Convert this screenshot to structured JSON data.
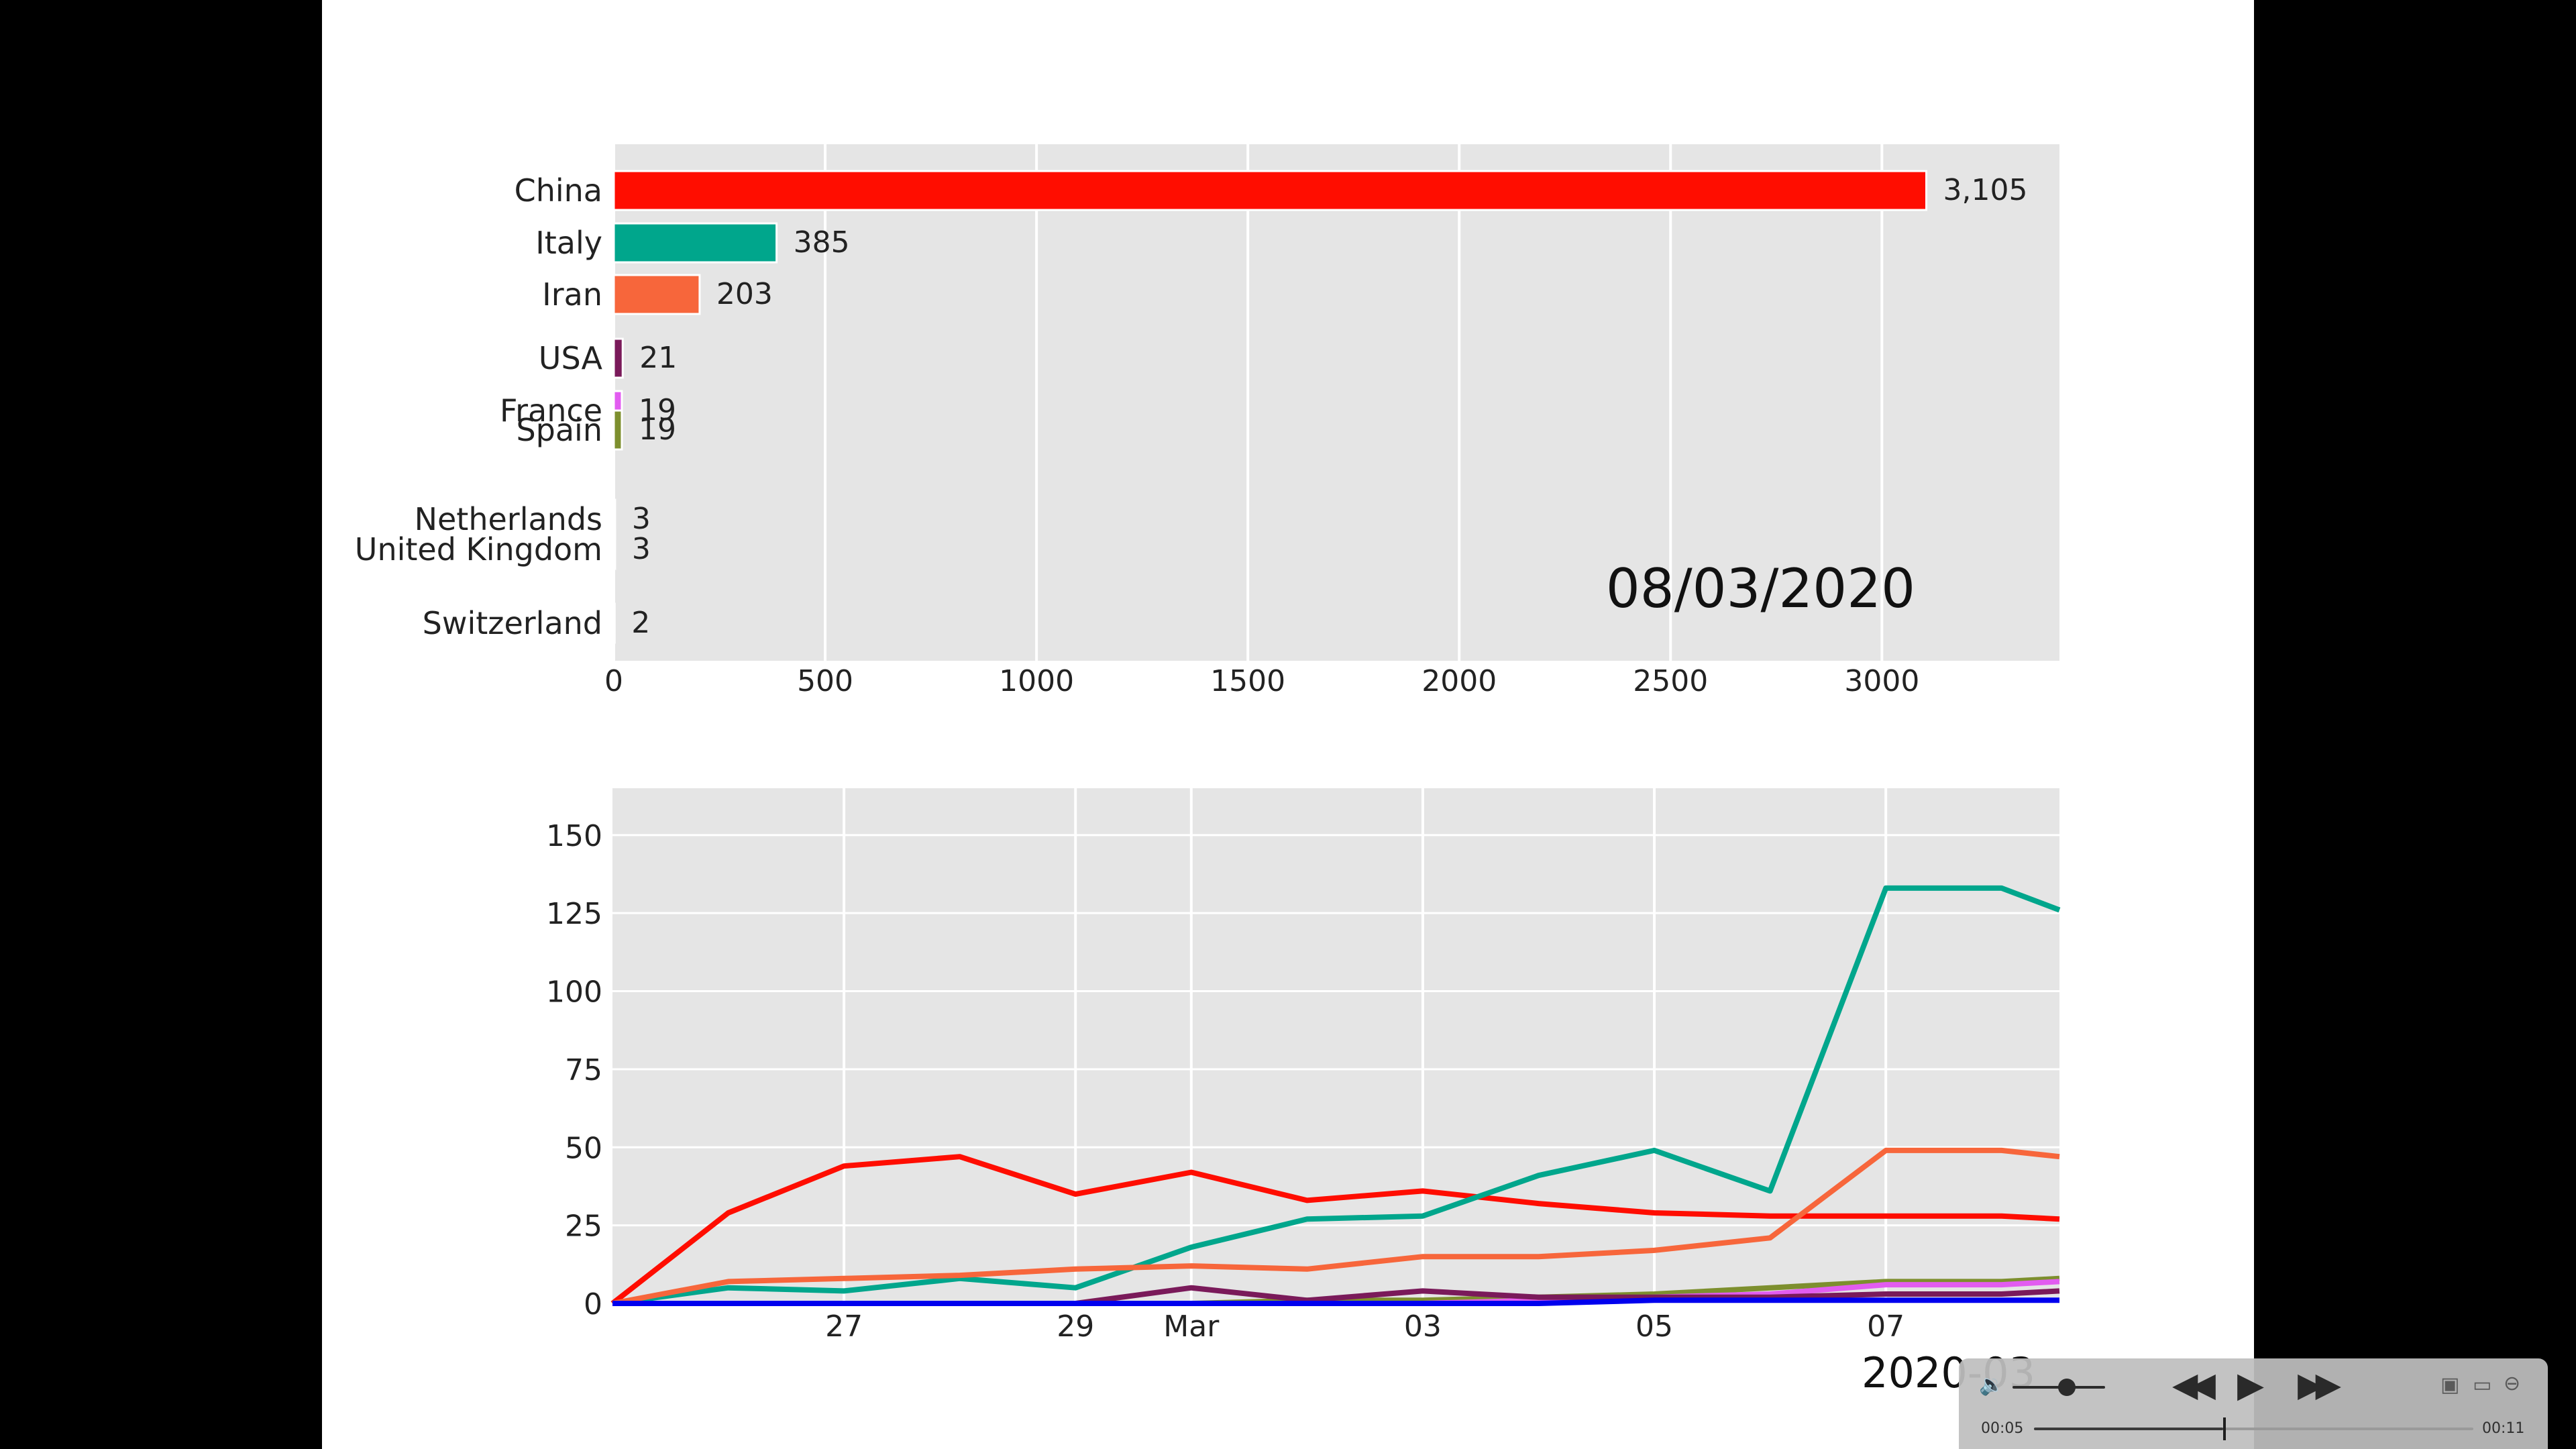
{
  "chart_data": [
    {
      "type": "bar",
      "orientation": "horizontal",
      "date_label": "08/03/2020",
      "categories": [
        "China",
        "Italy",
        "Iran",
        "USA",
        "France",
        "Spain",
        "Netherlands",
        "United Kingdom",
        "Switzerland"
      ],
      "values": [
        3105,
        385,
        203,
        21,
        19,
        19,
        3,
        3,
        2
      ],
      "value_labels": [
        "3,105",
        "385",
        "203",
        "21",
        "19",
        "19",
        "3",
        "3",
        "2"
      ],
      "colors": [
        "#ff0d00",
        "#00a68c",
        "#f7663b",
        "#7a1a5a",
        "#e25cf0",
        "#7d8f2e",
        "#2d2d8f",
        "#1f6c3a",
        "#4a4a4a"
      ],
      "xlim": [
        0,
        3420
      ],
      "xticks": [
        0,
        500,
        1000,
        1500,
        2000,
        2500,
        3000
      ],
      "xtick_labels": [
        "0",
        "500",
        "1000",
        "1500",
        "2000",
        "2500",
        "3000"
      ],
      "grid": true,
      "style": "ggplot"
    },
    {
      "type": "line",
      "x": [
        "2020-02-25",
        "2020-02-26",
        "2020-02-27",
        "2020-02-28",
        "2020-02-29",
        "2020-03-01",
        "2020-03-02",
        "2020-03-03",
        "2020-03-04",
        "2020-03-05",
        "2020-03-06",
        "2020-03-07",
        "2020-03-08",
        "2020-03-08T12:00"
      ],
      "xtick_labels": [
        "27",
        "29",
        "Mar",
        "03",
        "05",
        "07"
      ],
      "xtick_dates": [
        "2020-02-27",
        "2020-02-29",
        "2020-03-01",
        "2020-03-03",
        "2020-03-05",
        "2020-03-07"
      ],
      "xlabel": "2020-03",
      "ylim": [
        0,
        165
      ],
      "yticks": [
        0,
        25,
        50,
        75,
        100,
        125,
        150
      ],
      "ytick_labels": [
        "0",
        "25",
        "50",
        "75",
        "100",
        "125",
        "150"
      ],
      "grid": true,
      "series": [
        {
          "color": "#ff0d00",
          "values": [
            0,
            29,
            44,
            47,
            35,
            42,
            33,
            36,
            32,
            29,
            28,
            28,
            28,
            27
          ]
        },
        {
          "color": "#00a68c",
          "values": [
            0,
            5,
            4,
            8,
            5,
            18,
            27,
            28,
            41,
            49,
            36,
            133,
            133,
            126
          ]
        },
        {
          "color": "#f7663b",
          "values": [
            0,
            7,
            8,
            9,
            11,
            12,
            11,
            15,
            15,
            17,
            21,
            49,
            49,
            47
          ]
        },
        {
          "color": "#7d8f2e",
          "values": [
            0,
            0,
            0,
            0,
            0,
            0,
            1,
            1,
            2,
            3,
            5,
            7,
            7,
            8
          ]
        },
        {
          "color": "#e25cf0",
          "values": [
            0,
            0,
            0,
            0,
            0,
            0,
            0,
            0,
            1,
            2,
            3,
            6,
            6,
            7
          ]
        },
        {
          "color": "#7a1a5a",
          "values": [
            0,
            0,
            0,
            0,
            0,
            5,
            1,
            4,
            2,
            2,
            2,
            3,
            3,
            4
          ]
        },
        {
          "color": "#0000ee",
          "values": [
            0,
            0,
            0,
            0,
            0,
            0,
            0,
            0,
            0,
            1,
            1,
            1,
            1,
            1
          ]
        }
      ]
    }
  ],
  "player": {
    "current_time": "00:05",
    "total_time": "00:11",
    "progress_fraction": 0.43,
    "volume_fraction": 0.55,
    "icons": [
      "volume-icon",
      "rewind-icon",
      "play-icon",
      "fast-forward-icon",
      "pip-icon",
      "airplay-icon",
      "more-options-icon"
    ]
  }
}
